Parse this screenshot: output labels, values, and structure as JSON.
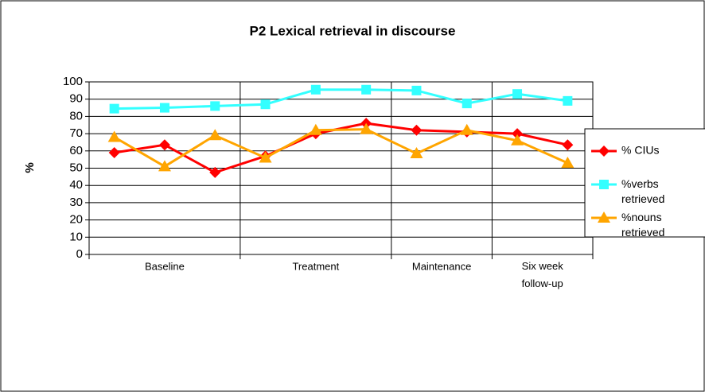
{
  "chart_data": {
    "type": "line",
    "title": "P2 Lexical retrieval in discourse",
    "y_label": "%",
    "groups": [
      {
        "label": "Baseline",
        "categories": [
          null,
          null,
          null
        ]
      },
      {
        "label": "Treatment",
        "categories": [
          null,
          null,
          null
        ]
      },
      {
        "label": "Maintenance",
        "categories": [
          null,
          null
        ]
      },
      {
        "label": "Six week follow-up",
        "categories": [
          null,
          null
        ]
      }
    ],
    "series": [
      {
        "name": "% CIUs",
        "color": "#ff0000",
        "marker": "diamond",
        "values": [
          59,
          63.5,
          47.5,
          57,
          70,
          76,
          72,
          71,
          70,
          63.5
        ]
      },
      {
        "name": "%verbs retrieved",
        "color": "#33ffff",
        "marker": "square",
        "values": [
          84.5,
          85,
          86,
          87,
          95.5,
          95.5,
          95,
          87.5,
          93,
          89
        ]
      },
      {
        "name": "%nouns retrieved",
        "color": "#ffa500",
        "marker": "triangle",
        "values": [
          68,
          51,
          69,
          56,
          72,
          72.5,
          58.5,
          72,
          66,
          53
        ]
      }
    ],
    "ylim": [
      0,
      100
    ],
    "yticks": [
      0,
      10,
      20,
      30,
      40,
      50,
      60,
      70,
      80,
      90,
      100
    ],
    "grid": true,
    "legend": "right"
  }
}
